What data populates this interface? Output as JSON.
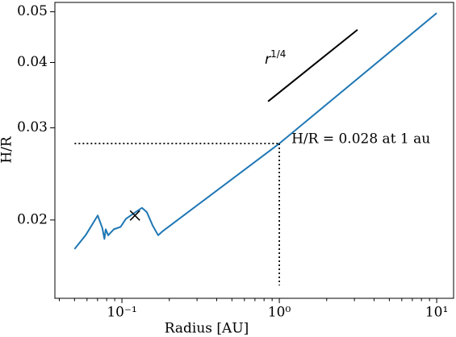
{
  "chart_data": {
    "type": "line",
    "xlabel": "Radius [AU]",
    "ylabel": "H/R",
    "xscale": "log",
    "yscale": "log",
    "xlim": [
      0.0375,
      12.8
    ],
    "ylim": [
      0.01417,
      0.0521
    ],
    "xticks": [
      {
        "value": 0.1,
        "label": "10⁻¹"
      },
      {
        "value": 1,
        "label": "10⁰"
      },
      {
        "value": 10,
        "label": "10¹"
      }
    ],
    "xminorticks": [
      0.04,
      0.05,
      0.06,
      0.07,
      0.08,
      0.09,
      0.2,
      0.3,
      0.4,
      0.5,
      0.6,
      0.7,
      0.8,
      0.9,
      2,
      3,
      4,
      5,
      6,
      7,
      8,
      9
    ],
    "yticks": [
      0.02,
      0.03,
      0.04,
      0.05
    ],
    "series": [
      {
        "color": "#1f77b4",
        "x": [
          0.05,
          0.0588,
          0.0702,
          0.0751,
          0.0774,
          0.0789,
          0.0818,
          0.0889,
          0.098,
          0.106,
          0.119,
          0.134,
          0.144,
          0.157,
          0.17,
          0.18,
          1,
          10
        ],
        "values": [
          0.0176,
          0.0187,
          0.0204,
          0.0193,
          0.0184,
          0.0192,
          0.0187,
          0.0192,
          0.0194,
          0.0201,
          0.0206,
          0.0211,
          0.0207,
          0.0195,
          0.0187,
          0.019,
          0.028,
          0.0497
        ]
      }
    ],
    "slope_line": {
      "color": "#000000",
      "x": [
        0.848,
        3.14
      ],
      "values": [
        0.0337,
        0.0462
      ],
      "label": "r",
      "label_superscript": "1/4"
    },
    "marker": {
      "x": 0.121,
      "value": 0.0204,
      "color": "#000000"
    },
    "guide": {
      "text": "H/R = 0.028 at 1 au",
      "x": 1,
      "value": 0.028,
      "x_from": 0.05,
      "y_to": 0.015,
      "style": "dotted"
    }
  }
}
